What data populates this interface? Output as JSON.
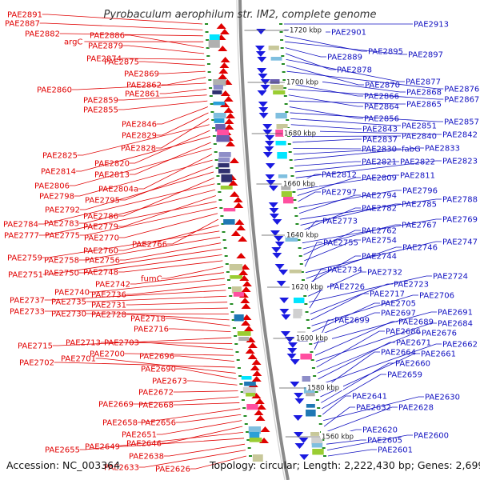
{
  "title": "Pyrobaculum aerophilum str. IM2, complete genome",
  "footer": {
    "accession": "Accession: NC_003364",
    "info": "Topology: circular; Length: 2,222,430 bp; Genes: 2,699"
  },
  "colors": {
    "left_labels": "#e00000",
    "right_labels": "#1010c0",
    "backbone": "#8a8a8a",
    "tick": "#228b22",
    "forward_arrow": "#e00000",
    "reverse_arrow": "#1a1ae0"
  },
  "scale_labels": [
    "1720 kbp",
    "1700 kbp",
    "1680 kbp",
    "1660 kbp",
    "1640 kbp",
    "1620 kbp",
    "1600 kbp",
    "1580 kbp",
    "1560 kbp"
  ],
  "left_labels": [
    "PAE2891",
    "PAE2887",
    "PAE2882",
    "argC",
    "PAE2886",
    "PAE2879",
    "PAE2874",
    "PAE2875",
    "PAE2869",
    "PAE2862",
    "PAE2860",
    "PAE2861",
    "PAE2859",
    "PAE2855",
    "PAE2846",
    "PAE2829",
    "PAE2828",
    "PAE2825",
    "PAE2820",
    "PAE2814",
    "PAE2813",
    "PAE2806",
    "PAE2804a",
    "PAE2798",
    "PAE2795",
    "PAE2792",
    "PAE2786",
    "PAE2784",
    "PAE2783",
    "PAE2779",
    "PAE2777",
    "PAE2775",
    "PAE2770",
    "PAE2766",
    "PAE2760",
    "PAE2759",
    "PAE2758",
    "PAE2756",
    "PAE2751",
    "PAE2750",
    "PAE2748",
    "fumC",
    "PAE2742",
    "PAE2740",
    "PAE2736",
    "PAE2737",
    "PAE2735",
    "PAE2731",
    "PAE2733",
    "PAE2730",
    "PAE2728",
    "PAE2718",
    "PAE2716",
    "PAE2715",
    "PAE2713",
    "PAE2703",
    "PAE2700",
    "PAE2696",
    "PAE2702",
    "PAE2701",
    "PAE2690",
    "PAE2673",
    "PAE2672",
    "PAE2669",
    "PAE2668",
    "PAE2658",
    "PAE2656",
    "PAE2651",
    "PAE2646",
    "PAE2655",
    "PAE2649",
    "PAE2638",
    "PAE2633",
    "PAE2626"
  ],
  "right_labels": [
    "PAE2913",
    "PAE2901",
    "PAE2895",
    "PAE2897",
    "PAE2889",
    "PAE2878",
    "PAE2877",
    "PAE2870",
    "PAE2876",
    "PAE2868",
    "PAE2866",
    "PAE2867",
    "PAE2864",
    "PAE2865",
    "PAE2856",
    "PAE2857",
    "PAE2851",
    "PAE2843",
    "PAE2842",
    "PAE2840",
    "PAE2837",
    "PAE2830",
    "fabG",
    "PAE2833",
    "PAE2821",
    "PAE2822",
    "PAE2823",
    "PAE2812",
    "PAE2811",
    "PAE2809",
    "PAE2797",
    "PAE2796",
    "PAE2794",
    "PAE2788",
    "PAE2785",
    "PAE2782",
    "PAE2773",
    "PAE2769",
    "PAE2767",
    "PAE2762",
    "PAE2754",
    "PAE2755",
    "PAE2747",
    "PAE2746",
    "PAE2744",
    "PAE2734",
    "PAE2732",
    "PAE2724",
    "PAE2726",
    "PAE2723",
    "PAE2717",
    "PAE2706",
    "PAE2705",
    "PAE2697",
    "PAE2691",
    "PAE2699",
    "PAE2689",
    "PAE2684",
    "PAE2686",
    "PAE2676",
    "PAE2671",
    "PAE2662",
    "PAE2664",
    "PAE2661",
    "PAE2660",
    "PAE2659",
    "PAE2641",
    "PAE2630",
    "PAE2632",
    "PAE2628",
    "PAE2620",
    "PAE2605",
    "PAE2600",
    "PAE2601"
  ]
}
